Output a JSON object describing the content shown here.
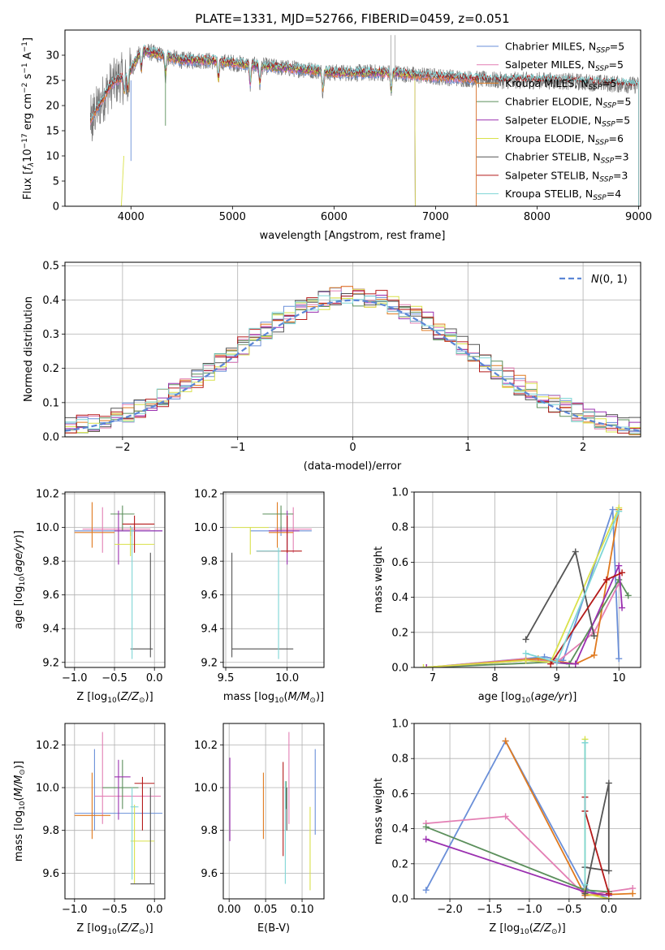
{
  "title": "PLATE=1331, MJD=52766, FIBERID=0459, z=0.051",
  "colors": {
    "Chabrier MILES": "#6a8fd8",
    "Salpeter MILES": "#e37fb4",
    "Kroupa MILES": "#e07a1f",
    "Chabrier ELODIE": "#5b8f5b",
    "Salpeter ELODIE": "#9b30b0",
    "Kroupa ELODIE": "#d9e14a",
    "Chabrier STELIB": "#555555",
    "Salpeter STELIB": "#b51a1a",
    "Kroupa STELIB": "#7fd6d6",
    "normal_curve": "#5b86d6",
    "grid": "#b0b0b0"
  },
  "chart_data": [
    {
      "id": "spectrum",
      "type": "line",
      "xlabel": "wavelength [Angstrom, rest frame]",
      "ylabel": "Flux [f_λ10^-17 erg cm^-2 s^-1 A^-1]",
      "xlim": [
        3350,
        9020
      ],
      "ylim": [
        0,
        35
      ],
      "xticks": [
        4000,
        5000,
        6000,
        7000,
        8000,
        9000
      ],
      "yticks": [
        0,
        5,
        10,
        15,
        20,
        25,
        30
      ],
      "grid": false,
      "legend_placement": "upper-right",
      "series": [
        {
          "name": "Chabrier MILES",
          "nssp": "5"
        },
        {
          "name": "Salpeter MILES",
          "nssp": "5"
        },
        {
          "name": "Kroupa MILES",
          "nssp": "5"
        },
        {
          "name": "Chabrier ELODIE",
          "nssp": "5"
        },
        {
          "name": "Salpeter ELODIE",
          "nssp": "5"
        },
        {
          "name": "Kroupa ELODIE",
          "nssp": "6"
        },
        {
          "name": "Chabrier STELIB",
          "nssp": "3"
        },
        {
          "name": "Salpeter STELIB",
          "nssp": "3"
        },
        {
          "name": "Kroupa STELIB",
          "nssp": "4"
        }
      ],
      "continuum_points": [
        [
          3600,
          17
        ],
        [
          3800,
          24
        ],
        [
          4000,
          27
        ],
        [
          4100,
          31
        ],
        [
          4300,
          30
        ],
        [
          4500,
          29
        ],
        [
          4700,
          29
        ],
        [
          5000,
          28.5
        ],
        [
          5200,
          28
        ],
        [
          5500,
          27.5
        ],
        [
          5800,
          27
        ],
        [
          6000,
          26.5
        ],
        [
          6300,
          26.5
        ],
        [
          6600,
          26.5
        ],
        [
          6800,
          26
        ],
        [
          7200,
          25.5
        ],
        [
          7600,
          25
        ],
        [
          8000,
          25
        ],
        [
          8300,
          24.8
        ],
        [
          8600,
          24.5
        ],
        [
          9000,
          24
        ]
      ],
      "observed_range": [
        3600,
        9000
      ],
      "model_ranges": {
        "MILES": [
          3600,
          7400
        ],
        "ELODIE": [
          3900,
          6800
        ],
        "STELIB": [
          3600,
          9000
        ]
      }
    },
    {
      "id": "residuals",
      "type": "histogram",
      "xlabel": "(data-model)/error",
      "ylabel": "Normed distribution",
      "xlim": [
        -2.5,
        2.5
      ],
      "ylim": [
        0,
        0.51
      ],
      "xticks": [
        -2,
        -1,
        0,
        1,
        2
      ],
      "yticks": [
        0.0,
        0.1,
        0.2,
        0.3,
        0.4,
        0.5
      ],
      "grid": true,
      "legend_placement": "upper-right",
      "normal_label": "N(0,1)",
      "bin_width": 0.1,
      "bin_start": -2.5
    },
    {
      "id": "z_age",
      "type": "errorbar",
      "xlabel": "Z [log10(Z/Z⊙)]",
      "ylabel": "age  [log10(age/yr)]",
      "xlim": [
        -1.12,
        0.13
      ],
      "ylim": [
        9.17,
        10.21
      ],
      "xticks": [
        -1.0,
        -0.5,
        0.0
      ],
      "yticks": [
        9.2,
        9.4,
        9.6,
        9.8,
        10.0,
        10.2
      ],
      "grid": true,
      "points": [
        {
          "name": "Chabrier MILES",
          "x": -0.3,
          "xlo": -1.0,
          "xhi": 0.1,
          "y": 9.98,
          "ylo": 9.95,
          "yhi": 10.01
        },
        {
          "name": "Salpeter MILES",
          "x": -0.65,
          "xlo": -0.9,
          "xhi": -0.05,
          "y": 9.99,
          "ylo": 9.85,
          "yhi": 10.12
        },
        {
          "name": "Kroupa MILES",
          "x": -0.78,
          "xlo": -1.0,
          "xhi": -0.5,
          "y": 9.97,
          "ylo": 9.88,
          "yhi": 10.15
        },
        {
          "name": "Chabrier ELODIE",
          "x": -0.4,
          "xlo": -0.55,
          "xhi": -0.25,
          "y": 10.08,
          "ylo": 9.98,
          "yhi": 10.13
        },
        {
          "name": "Salpeter ELODIE",
          "x": -0.45,
          "xlo": -0.5,
          "xhi": 0.1,
          "y": 9.98,
          "ylo": 9.78,
          "yhi": 10.1
        },
        {
          "name": "Kroupa ELODIE",
          "x": -0.3,
          "xlo": -0.5,
          "xhi": 0.0,
          "y": 9.9,
          "ylo": 9.83,
          "yhi": 10.0
        },
        {
          "name": "Chabrier STELIB",
          "x": -0.05,
          "xlo": -0.3,
          "xhi": -0.02,
          "y": 9.28,
          "ylo": 9.23,
          "yhi": 9.85
        },
        {
          "name": "Salpeter STELIB",
          "x": -0.25,
          "xlo": -0.4,
          "xhi": 0.0,
          "y": 10.02,
          "ylo": 9.85,
          "yhi": 10.07
        },
        {
          "name": "Kroupa STELIB",
          "x": -0.28,
          "xlo": -0.3,
          "xhi": -0.25,
          "y": 9.98,
          "ylo": 9.22,
          "yhi": 10.0
        }
      ]
    },
    {
      "id": "mass_age",
      "type": "errorbar",
      "xlabel": "mass [log10(M/M⊙)]",
      "ylabel": "",
      "xlim": [
        9.48,
        10.3
      ],
      "ylim": [
        9.17,
        10.21
      ],
      "xticks": [
        9.5,
        10.0
      ],
      "yticks": [
        9.2,
        9.4,
        9.6,
        9.8,
        10.0,
        10.2
      ],
      "grid": true,
      "points": [
        {
          "name": "Chabrier MILES",
          "x": 9.95,
          "xlo": 9.7,
          "xhi": 10.2,
          "y": 9.98,
          "ylo": 9.95,
          "yhi": 10.01
        },
        {
          "name": "Salpeter MILES",
          "x": 10.05,
          "xlo": 9.9,
          "xhi": 10.2,
          "y": 9.99,
          "ylo": 9.85,
          "yhi": 10.12
        },
        {
          "name": "Kroupa MILES",
          "x": 9.92,
          "xlo": 9.85,
          "xhi": 10.05,
          "y": 9.97,
          "ylo": 9.88,
          "yhi": 10.15
        },
        {
          "name": "Chabrier ELODIE",
          "x": 9.95,
          "xlo": 9.8,
          "xhi": 10.05,
          "y": 10.08,
          "ylo": 9.98,
          "yhi": 10.13
        },
        {
          "name": "Salpeter ELODIE",
          "x": 10.0,
          "xlo": 9.85,
          "xhi": 10.1,
          "y": 9.98,
          "ylo": 9.78,
          "yhi": 10.1
        },
        {
          "name": "Kroupa ELODIE",
          "x": 9.7,
          "xlo": 9.55,
          "xhi": 9.85,
          "y": 10.0,
          "ylo": 9.84,
          "yhi": 10.0
        },
        {
          "name": "Chabrier STELIB",
          "x": 9.55,
          "xlo": 9.55,
          "xhi": 10.05,
          "y": 9.28,
          "ylo": 9.23,
          "yhi": 9.85
        },
        {
          "name": "Salpeter STELIB",
          "x": 10.0,
          "xlo": 9.75,
          "xhi": 10.12,
          "y": 9.86,
          "ylo": 9.85,
          "yhi": 10.07
        },
        {
          "name": "Kroupa STELIB",
          "x": 9.93,
          "xlo": 9.75,
          "xhi": 9.95,
          "y": 9.86,
          "ylo": 9.22,
          "yhi": 9.88
        }
      ]
    },
    {
      "id": "age_weight",
      "type": "line",
      "xlabel": "age  [log10(age/yr)]",
      "ylabel": "mass weight",
      "xlim": [
        6.7,
        10.35
      ],
      "ylim": [
        0,
        1.0
      ],
      "xticks": [
        7,
        8,
        9,
        10
      ],
      "yticks": [
        0.0,
        0.2,
        0.4,
        0.6,
        0.8,
        1.0
      ],
      "grid": true,
      "series": [
        {
          "name": "Chabrier MILES",
          "x": [
            6.9,
            8.8,
            9.1,
            9.9,
            10.0
          ],
          "y": [
            0.0,
            0.06,
            0.04,
            0.9,
            0.05
          ]
        },
        {
          "name": "Salpeter MILES",
          "x": [
            6.9,
            8.5,
            9.0,
            9.6,
            10.0
          ],
          "y": [
            0.0,
            0.05,
            0.03,
            0.2,
            0.48
          ]
        },
        {
          "name": "Kroupa MILES",
          "x": [
            6.9,
            8.7,
            9.3,
            9.6,
            10.0
          ],
          "y": [
            0.0,
            0.05,
            0.02,
            0.07,
            0.9
          ]
        },
        {
          "name": "Chabrier ELODIE",
          "x": [
            6.9,
            8.9,
            9.2,
            10.0,
            10.15
          ],
          "y": [
            0.0,
            0.03,
            0.02,
            0.5,
            0.41
          ]
        },
        {
          "name": "Salpeter ELODIE",
          "x": [
            6.9,
            8.5,
            9.3,
            10.0,
            10.05
          ],
          "y": [
            0.0,
            0.04,
            0.02,
            0.58,
            0.34
          ]
        },
        {
          "name": "Kroupa ELODIE",
          "x": [
            6.85,
            8.5,
            8.9,
            10.0
          ],
          "y": [
            0.0,
            0.04,
            0.03,
            0.91
          ]
        },
        {
          "name": "Chabrier STELIB",
          "x": [
            8.5,
            9.3,
            9.6
          ],
          "y": [
            0.16,
            0.66,
            0.18
          ]
        },
        {
          "name": "Salpeter STELIB",
          "x": [
            8.9,
            9.8,
            10.05
          ],
          "y": [
            0.02,
            0.5,
            0.54
          ]
        },
        {
          "name": "Kroupa STELIB",
          "x": [
            8.5,
            9.0,
            10.0
          ],
          "y": [
            0.08,
            0.03,
            0.89
          ]
        }
      ]
    },
    {
      "id": "z_mass",
      "type": "errorbar",
      "xlabel": "Z [log10(Z/Z⊙)]",
      "ylabel": "mass [log10(M/M⊙)]",
      "xlim": [
        -1.12,
        0.13
      ],
      "ylim": [
        9.48,
        10.3
      ],
      "xticks": [
        -1.0,
        -0.5,
        0.0
      ],
      "yticks": [
        9.6,
        9.8,
        10.0,
        10.2
      ],
      "grid": true,
      "points": [
        {
          "name": "Chabrier MILES",
          "x": -0.75,
          "xlo": -1.0,
          "xhi": 0.1,
          "y": 9.88,
          "ylo": 9.8,
          "yhi": 10.18
        },
        {
          "name": "Salpeter MILES",
          "x": -0.65,
          "xlo": -0.75,
          "xhi": 0.08,
          "y": 9.96,
          "ylo": 9.83,
          "yhi": 10.26
        },
        {
          "name": "Kroupa MILES",
          "x": -0.78,
          "xlo": -1.0,
          "xhi": -0.55,
          "y": 9.87,
          "ylo": 9.76,
          "yhi": 10.07
        },
        {
          "name": "Chabrier ELODIE",
          "x": -0.4,
          "xlo": -0.65,
          "xhi": -0.2,
          "y": 10.0,
          "ylo": 9.9,
          "yhi": 10.13
        },
        {
          "name": "Salpeter ELODIE",
          "x": -0.45,
          "xlo": -0.5,
          "xhi": -0.3,
          "y": 10.05,
          "ylo": 9.85,
          "yhi": 10.13
        },
        {
          "name": "Kroupa ELODIE",
          "x": -0.25,
          "xlo": -0.3,
          "xhi": 0.0,
          "y": 9.75,
          "ylo": 9.55,
          "yhi": 9.92
        },
        {
          "name": "Chabrier STELIB",
          "x": -0.05,
          "xlo": -0.3,
          "xhi": 0.0,
          "y": 9.55,
          "ylo": 9.55,
          "yhi": 10.0
        },
        {
          "name": "Salpeter STELIB",
          "x": -0.15,
          "xlo": -0.25,
          "xhi": 0.0,
          "y": 10.02,
          "ylo": 9.8,
          "yhi": 10.05
        },
        {
          "name": "Kroupa STELIB",
          "x": -0.28,
          "xlo": -0.3,
          "xhi": -0.2,
          "y": 9.91,
          "ylo": 9.57,
          "yhi": 10.0
        }
      ]
    },
    {
      "id": "ebv_mass",
      "type": "errorbar",
      "xlabel": "E(B-V)",
      "ylabel": "",
      "xlim": [
        -0.008,
        0.13
      ],
      "ylim": [
        9.48,
        10.3
      ],
      "xticks": [
        0.0,
        0.05,
        0.1
      ],
      "yticks": [
        9.6,
        9.8,
        10.0,
        10.2
      ],
      "grid": true,
      "points": [
        {
          "name": "Chabrier MILES",
          "x": 0.118,
          "y": 9.98,
          "ylo": 9.78,
          "yhi": 10.18
        },
        {
          "name": "Salpeter MILES",
          "x": 0.082,
          "y": 9.96,
          "ylo": 9.83,
          "yhi": 10.26
        },
        {
          "name": "Kroupa MILES",
          "x": 0.047,
          "y": 9.88,
          "ylo": 9.76,
          "yhi": 10.07
        },
        {
          "name": "Chabrier ELODIE",
          "x": 0.078,
          "y": 10.0,
          "ylo": 9.9,
          "yhi": 10.03
        },
        {
          "name": "Salpeter ELODIE",
          "x": 0.001,
          "y": 9.96,
          "ylo": 9.75,
          "yhi": 10.14
        },
        {
          "name": "Kroupa ELODIE",
          "x": 0.111,
          "y": 9.75,
          "ylo": 9.52,
          "yhi": 9.91
        },
        {
          "name": "Chabrier STELIB",
          "x": 0.079,
          "y": 9.85,
          "ylo": 9.8,
          "yhi": 10.0
        },
        {
          "name": "Salpeter STELIB",
          "x": 0.074,
          "y": 9.9,
          "ylo": 9.68,
          "yhi": 10.12
        },
        {
          "name": "Kroupa STELIB",
          "x": 0.077,
          "y": 9.7,
          "ylo": 9.55,
          "yhi": 10.03
        }
      ]
    },
    {
      "id": "z_weight",
      "type": "line",
      "xlabel": "Z [log10(Z/Z⊙)]",
      "ylabel": "mass weight",
      "xlim": [
        -2.45,
        0.4
      ],
      "ylim": [
        0,
        1.0
      ],
      "xticks": [
        -2.0,
        -1.5,
        -1.0,
        -0.5,
        0.0
      ],
      "yticks": [
        0.0,
        0.2,
        0.4,
        0.6,
        0.8,
        1.0
      ],
      "grid": true,
      "series": [
        {
          "name": "Chabrier MILES",
          "x": [
            -2.3,
            -1.3,
            -0.3,
            0.0
          ],
          "y": [
            0.05,
            0.9,
            0.06,
            0.0
          ]
        },
        {
          "name": "Salpeter MILES",
          "x": [
            -2.3,
            -1.3,
            -0.3,
            0.3
          ],
          "y": [
            0.43,
            0.47,
            0.02,
            0.06
          ]
        },
        {
          "name": "Kroupa MILES",
          "x": [
            -1.3,
            -0.3,
            0.3
          ],
          "y": [
            0.9,
            0.02,
            0.03
          ]
        },
        {
          "name": "Chabrier ELODIE",
          "x": [
            -2.3,
            -0.3,
            0.0
          ],
          "y": [
            0.41,
            0.05,
            0.04
          ]
        },
        {
          "name": "Salpeter ELODIE",
          "x": [
            -2.3,
            -0.3,
            0.0
          ],
          "y": [
            0.34,
            0.04,
            0.02
          ]
        },
        {
          "name": "Kroupa ELODIE",
          "x": [
            -0.3,
            -0.3,
            0.0
          ],
          "y": [
            0.91,
            0.03,
            0.0
          ]
        },
        {
          "name": "Chabrier STELIB",
          "x": [
            -0.3,
            0.0,
            0.0,
            -0.3
          ],
          "y": [
            0.03,
            0.66,
            0.16,
            0.18
          ]
        },
        {
          "name": "Salpeter STELIB",
          "x": [
            -0.3,
            -0.3,
            0.0
          ],
          "y": [
            0.58,
            0.5,
            0.03
          ]
        },
        {
          "name": "Kroupa STELIB",
          "x": [
            -0.3,
            -0.3
          ],
          "y": [
            0.89,
            0.08
          ]
        }
      ]
    }
  ]
}
